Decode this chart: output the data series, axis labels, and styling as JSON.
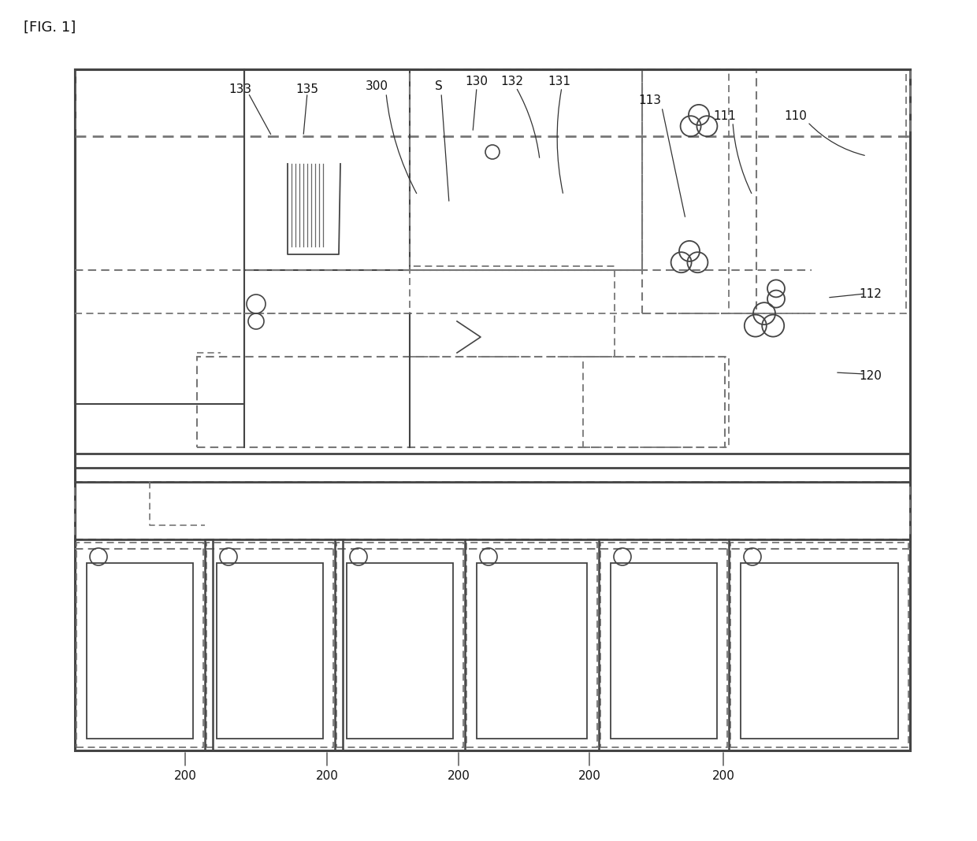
{
  "title": "[FIG. 1]",
  "bg_color": "#ffffff",
  "lc": "#444444",
  "dc": "#777777",
  "fig_width": 12.4,
  "fig_height": 10.68,
  "dpi": 100
}
